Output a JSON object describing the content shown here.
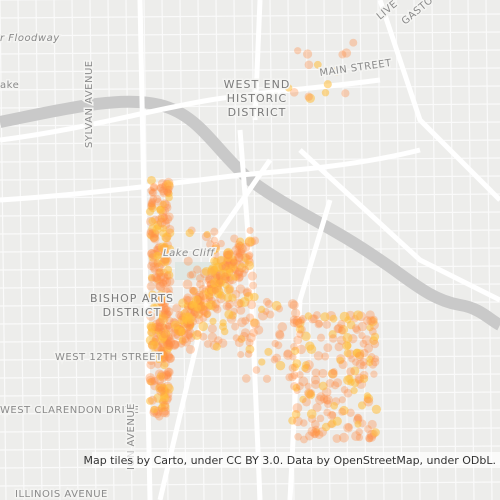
{
  "labels": {
    "floodway": "r Floodway",
    "lake_left": "ake",
    "sylvan": "SYLVAN AVENUE",
    "west_end_1": "WEST END",
    "west_end_2": "HISTORIC",
    "west_end_3": "DISTRICT",
    "main_street": "MAIN STREET",
    "live": "LIVE",
    "gaston": "GASTO",
    "lake_cliff": "Lake Cliff",
    "bishop_arts_1": "BISHOP ARTS",
    "bishop_arts_2": "DISTRICT",
    "west_12th": "WEST 12TH STREET",
    "clarendon": "WEST CLARENDON DRIVE",
    "illinois": "ILLINOIS AVENUE",
    "vertical_avenue": "ION AVENUE"
  },
  "attribution": "Map tiles by Carto, under CC BY 3.0. Data by OpenStreetMap, under ODbL."
}
